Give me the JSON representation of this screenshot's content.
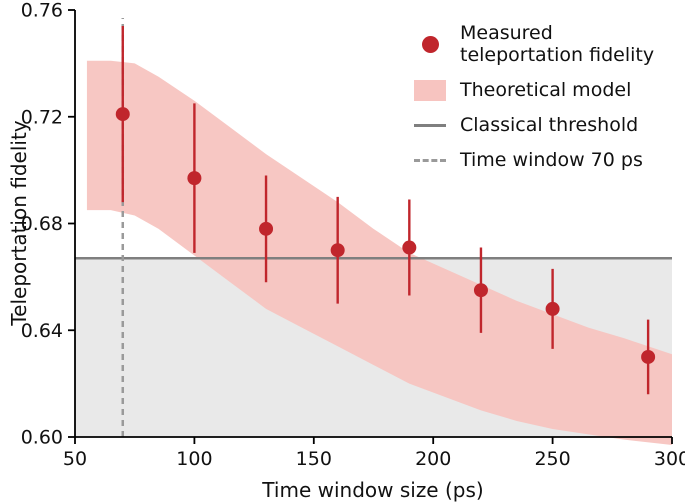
{
  "chart_data": {
    "type": "scatter",
    "title": "",
    "xlabel": "Time window size (ps)",
    "ylabel": "Teleportation fidelity",
    "xlim": [
      50,
      300
    ],
    "ylim": [
      0.6,
      0.76
    ],
    "x_ticks": [
      50,
      100,
      150,
      200,
      250,
      300
    ],
    "y_ticks": [
      0.6,
      0.64,
      0.68,
      0.72,
      0.76
    ],
    "grid": false,
    "legend_position": "top-right",
    "measured": {
      "label": "Measured teleportation fidelity",
      "x": [
        70,
        100,
        130,
        160,
        190,
        220,
        250,
        290
      ],
      "y": [
        0.721,
        0.697,
        0.678,
        0.67,
        0.671,
        0.655,
        0.648,
        0.63
      ],
      "y_err": [
        0.033,
        0.028,
        0.02,
        0.02,
        0.018,
        0.016,
        0.015,
        0.014
      ]
    },
    "band": {
      "label": "Theoretical model",
      "x": [
        55,
        65,
        75,
        85,
        100,
        115,
        130,
        145,
        160,
        175,
        190,
        205,
        220,
        235,
        250,
        265,
        280,
        300
      ],
      "upper": [
        0.741,
        0.741,
        0.74,
        0.735,
        0.726,
        0.716,
        0.706,
        0.697,
        0.688,
        0.678,
        0.669,
        0.663,
        0.657,
        0.651,
        0.646,
        0.641,
        0.637,
        0.631
      ],
      "lower": [
        0.685,
        0.685,
        0.683,
        0.678,
        0.668,
        0.658,
        0.648,
        0.641,
        0.634,
        0.627,
        0.62,
        0.615,
        0.61,
        0.606,
        0.603,
        0.601,
        0.599,
        0.597
      ]
    },
    "threshold": {
      "label": "Classical threshold",
      "y": 0.667
    },
    "vline": {
      "label": "Time window 70 ps",
      "x": 70,
      "style": "dashed"
    },
    "colors": {
      "point": "#c0262c",
      "band": "#f7c4c0",
      "threshold": "#7f7f7f",
      "dashed": "#9a9a9a",
      "below_region": "#e9e9e9",
      "axis": "#000000"
    }
  }
}
